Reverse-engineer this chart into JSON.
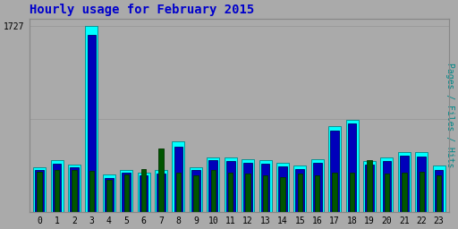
{
  "title": "Hourly usage for February 2015",
  "title_color": "#0000cc",
  "title_fontsize": 10,
  "ylabel_right": "Pages / Files / Hits",
  "hours": [
    0,
    1,
    2,
    3,
    4,
    5,
    6,
    7,
    8,
    9,
    10,
    11,
    12,
    13,
    14,
    15,
    16,
    17,
    18,
    19,
    20,
    21,
    22,
    23
  ],
  "hits": [
    420,
    480,
    440,
    1727,
    350,
    390,
    370,
    390,
    660,
    420,
    510,
    510,
    490,
    480,
    455,
    435,
    490,
    800,
    860,
    475,
    510,
    560,
    560,
    430
  ],
  "files": [
    390,
    450,
    415,
    1650,
    320,
    365,
    345,
    360,
    610,
    390,
    480,
    478,
    460,
    450,
    425,
    400,
    455,
    760,
    820,
    440,
    475,
    525,
    520,
    390
  ],
  "pages": [
    375,
    390,
    390,
    385,
    300,
    350,
    400,
    590,
    365,
    345,
    390,
    370,
    355,
    345,
    325,
    355,
    345,
    365,
    365,
    485,
    355,
    370,
    375,
    345
  ],
  "bar_color_hits": "#00ffff",
  "bar_color_files": "#0000bb",
  "bar_color_pages": "#005500",
  "bar_edge_hits": "#008888",
  "bar_edge_files": "#000066",
  "bar_edge_pages": "#003300",
  "bg_color": "#aaaaaa",
  "plot_bg_color": "#aaaaaa",
  "ylim": [
    0,
    1800
  ],
  "ytick_value": 1727,
  "ytick_label": "1727",
  "hline1": 1727,
  "hline2": 863
}
